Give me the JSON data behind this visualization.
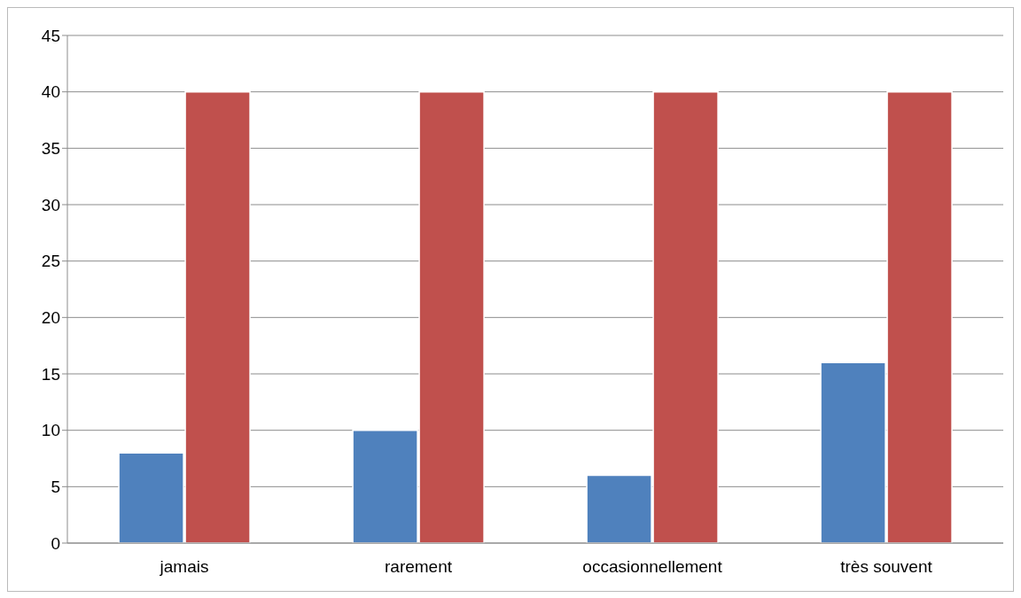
{
  "chart_data": {
    "type": "bar",
    "categories": [
      "jamais",
      "rarement",
      "occasionnellement",
      "très souvent"
    ],
    "series": [
      {
        "color": "#4f81bd",
        "values": [
          8,
          10,
          6,
          16
        ]
      },
      {
        "color": "#c0504d",
        "values": [
          40,
          40,
          40,
          40
        ]
      }
    ],
    "ylim": [
      0,
      45
    ],
    "yticks": [
      0,
      5,
      10,
      15,
      20,
      25,
      30,
      35,
      40,
      45
    ],
    "grid": "y"
  }
}
